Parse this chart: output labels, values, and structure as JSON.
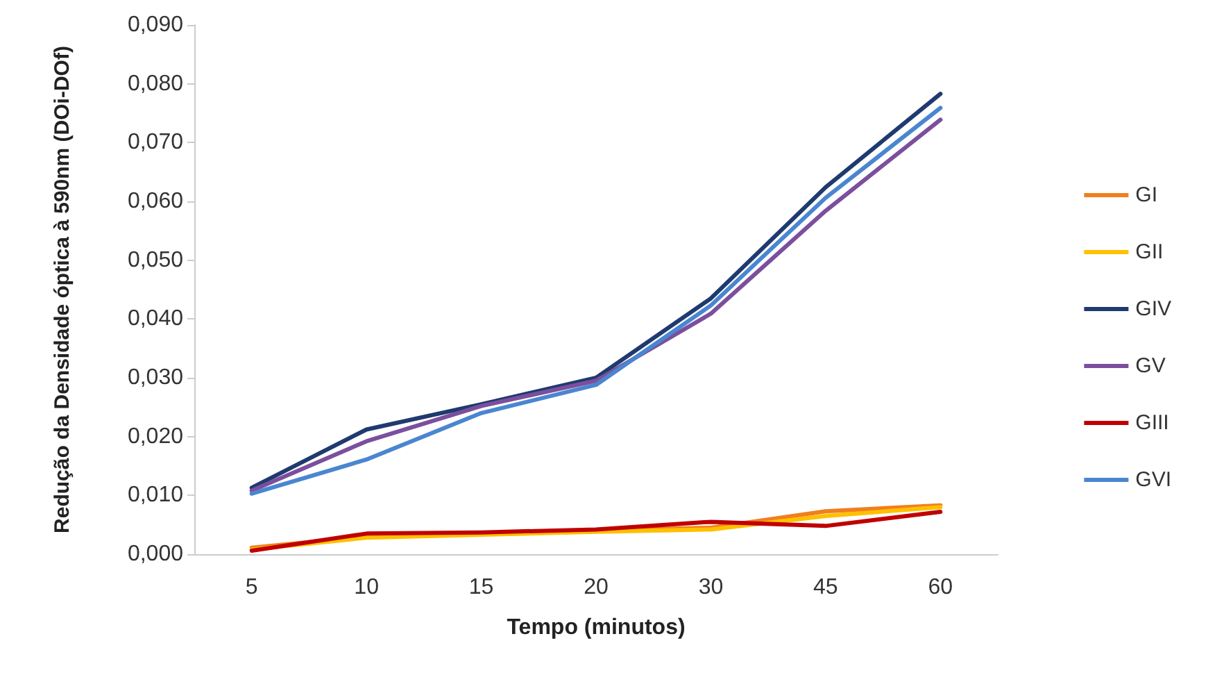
{
  "chart_data": {
    "type": "line",
    "xlabel": "Tempo (minutos)",
    "ylabel": "Redução da Densidade óptica à 590nm (DOi-DOf)",
    "categories": [
      "5",
      "10",
      "15",
      "20",
      "30",
      "45",
      "60"
    ],
    "series": [
      {
        "name": "GI",
        "color": "#f07f1e",
        "values": [
          0.0011,
          0.003,
          0.0035,
          0.004,
          0.0045,
          0.0073,
          0.0083
        ]
      },
      {
        "name": "GII",
        "color": "#ffc000",
        "values": [
          0.0008,
          0.0028,
          0.0033,
          0.0038,
          0.0042,
          0.0065,
          0.008
        ]
      },
      {
        "name": "GIV",
        "color": "#1f3a6e",
        "values": [
          0.0113,
          0.0212,
          0.0255,
          0.03,
          0.0435,
          0.0624,
          0.0783
        ]
      },
      {
        "name": "GV",
        "color": "#7b4f9d",
        "values": [
          0.0108,
          0.0192,
          0.0252,
          0.0295,
          0.0409,
          0.0584,
          0.0739
        ]
      },
      {
        "name": "GIII",
        "color": "#c00000",
        "values": [
          0.0006,
          0.0035,
          0.0037,
          0.0042,
          0.0055,
          0.0048,
          0.0072
        ]
      },
      {
        "name": "GVI",
        "color": "#4a86d0",
        "values": [
          0.0103,
          0.0161,
          0.024,
          0.0288,
          0.0423,
          0.0606,
          0.0759
        ]
      }
    ],
    "ylim": [
      0,
      0.09
    ],
    "yticks": [
      {
        "value": 0,
        "label": "0,000"
      },
      {
        "value": 0.01,
        "label": "0,010"
      },
      {
        "value": 0.02,
        "label": "0,020"
      },
      {
        "value": 0.03,
        "label": "0,030"
      },
      {
        "value": 0.04,
        "label": "0,040"
      },
      {
        "value": 0.05,
        "label": "0,050"
      },
      {
        "value": 0.06,
        "label": "0,060"
      },
      {
        "value": 0.07,
        "label": "0,070"
      },
      {
        "value": 0.08,
        "label": "0,080"
      },
      {
        "value": 0.09,
        "label": "0,090"
      }
    ],
    "grid": false,
    "legend": "right",
    "marker": "none",
    "line_style": "solid"
  }
}
